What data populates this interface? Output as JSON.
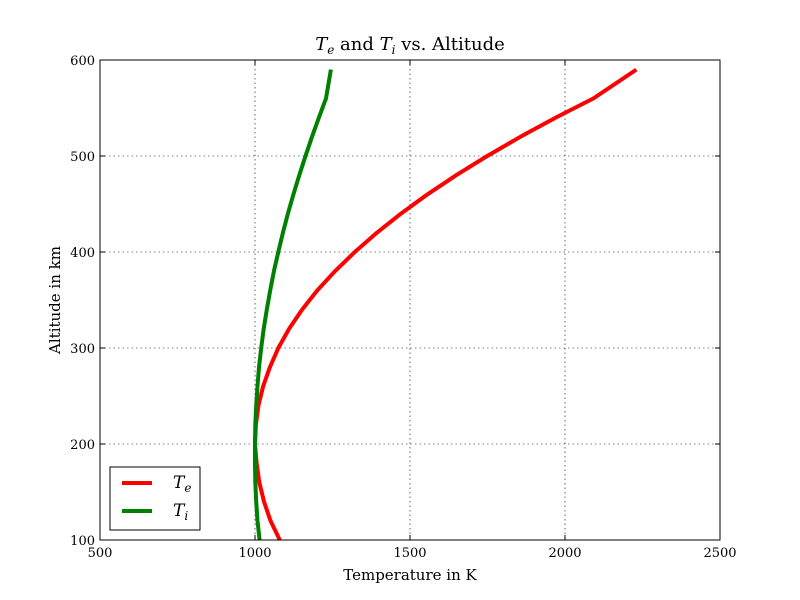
{
  "chart_data": {
    "type": "line",
    "title": "Te and Ti vs. Altitude",
    "title_parts": [
      "T",
      "e",
      " and ",
      "T",
      "i",
      " vs. Altitude"
    ],
    "xlabel": "Temperature in K",
    "ylabel": "Altitude in km",
    "xlim": [
      500,
      2500
    ],
    "ylim": [
      100,
      600
    ],
    "xticks": [
      500,
      1000,
      1500,
      2000,
      2500
    ],
    "yticks": [
      100,
      200,
      300,
      400,
      500,
      600
    ],
    "xtick_labels": [
      "500",
      "1000",
      "1500",
      "2000",
      "2500"
    ],
    "ytick_labels": [
      "100",
      "200",
      "300",
      "400",
      "500",
      "600"
    ],
    "grid": true,
    "legend_position": "bottom-left",
    "series": [
      {
        "name": "Te",
        "name_parts": [
          "T",
          "e"
        ],
        "color": "#ff0000",
        "x": [
          1080,
          1050,
          1029,
          1014,
          1005,
          1000,
          1003,
          1011,
          1026,
          1048,
          1075,
          1110,
          1152,
          1201,
          1258,
          1322,
          1393,
          1471,
          1556,
          1649,
          1749,
          1856,
          1970,
          2092,
          2230
        ],
        "y": [
          100,
          120,
          140,
          160,
          180,
          200,
          220,
          240,
          260,
          280,
          300,
          320,
          340,
          360,
          380,
          400,
          420,
          440,
          460,
          480,
          500,
          520,
          540,
          560,
          590
        ]
      },
      {
        "name": "Ti",
        "name_parts": [
          "T",
          "i"
        ],
        "color": "#008000",
        "x": [
          1015,
          1008,
          1004,
          1001,
          1000,
          1000,
          1001,
          1004,
          1008,
          1013,
          1020,
          1028,
          1038,
          1049,
          1061,
          1075,
          1090,
          1106,
          1124,
          1143,
          1163,
          1184,
          1206,
          1229,
          1245
        ],
        "y": [
          100,
          120,
          140,
          160,
          180,
          200,
          220,
          240,
          260,
          280,
          300,
          320,
          340,
          360,
          380,
          400,
          420,
          440,
          460,
          480,
          500,
          520,
          540,
          560,
          590
        ]
      }
    ]
  }
}
